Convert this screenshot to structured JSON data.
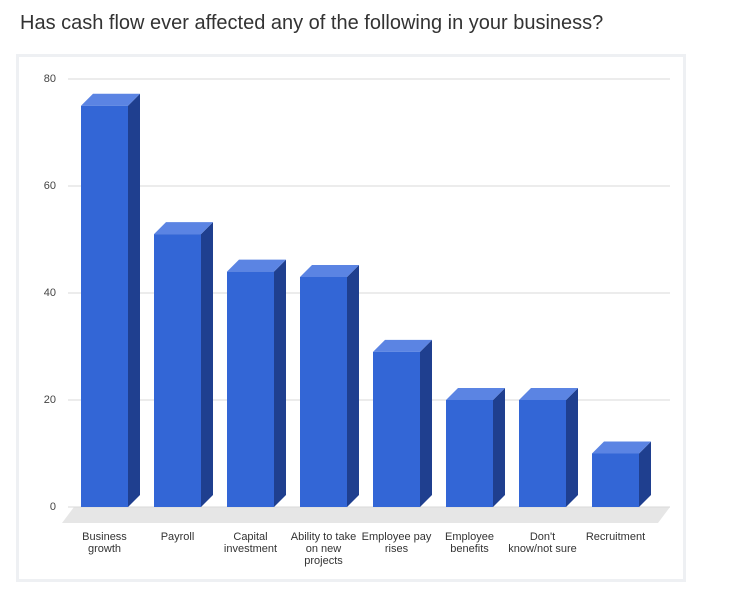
{
  "chart_data": {
    "type": "bar3d",
    "title": "Has cash flow ever affected any of the following in your business?",
    "categories": [
      "Business growth",
      "Payroll",
      "Capital investment",
      "Ability to take on new projects",
      "Employee pay rises",
      "Employee benefits",
      "Don't know/not sure",
      "Recruitment"
    ],
    "values": [
      75,
      51,
      44,
      43,
      29,
      20,
      20,
      10
    ],
    "color": "#3366d6",
    "ylim": [
      0,
      80
    ],
    "yticks": [
      0,
      20,
      40,
      60,
      80
    ],
    "grid": true
  }
}
